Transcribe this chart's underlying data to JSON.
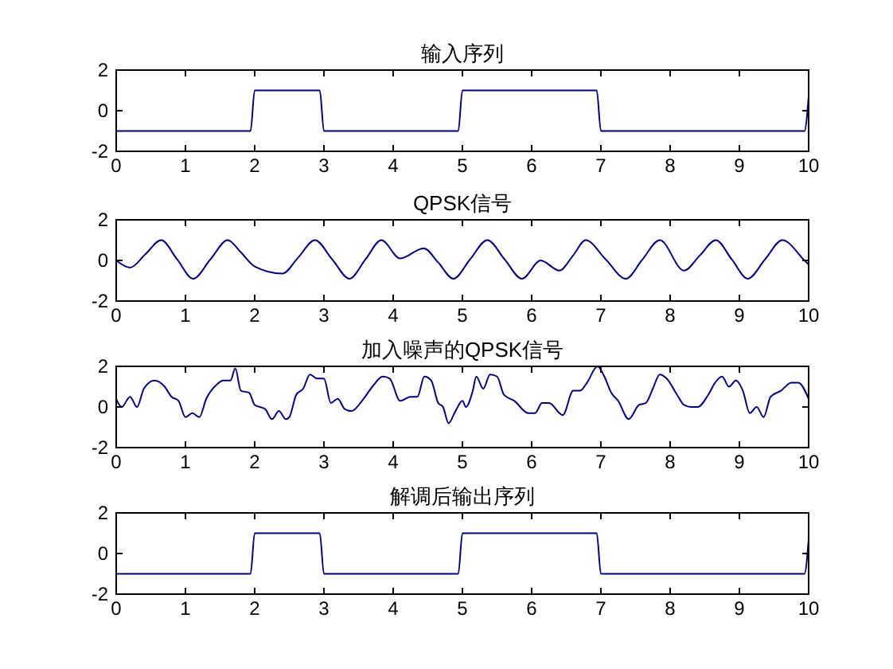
{
  "chart_data": [
    {
      "type": "line",
      "title": "输入序列",
      "xlim": [
        0,
        10
      ],
      "ylim": [
        -2,
        2
      ],
      "xticks": [
        0,
        1,
        2,
        3,
        4,
        5,
        6,
        7,
        8,
        9,
        10
      ],
      "yticks": [
        -2,
        0,
        2
      ],
      "series": [
        {
          "color": "#000080",
          "x": [
            0,
            1.94,
            2,
            2.94,
            3,
            4.94,
            5,
            6.94,
            7,
            9.94,
            10
          ],
          "values": [
            -1,
            -1,
            1,
            1,
            -1,
            -1,
            1,
            1,
            -1,
            -1,
            0.7
          ]
        }
      ]
    },
    {
      "type": "line",
      "title": "QPSK信号",
      "xlim": [
        0,
        10
      ],
      "ylim": [
        -2,
        2
      ],
      "xticks": [
        0,
        1,
        2,
        3,
        4,
        5,
        6,
        7,
        8,
        9,
        10
      ],
      "yticks": [
        -2,
        0,
        2
      ],
      "series": [
        {
          "color": "#000080",
          "x": [
            0,
            0.2,
            0.42,
            0.65,
            0.88,
            1.11,
            1.36,
            1.61,
            1.8,
            2.0,
            2.4,
            2.63,
            2.87,
            3.12,
            3.37,
            3.6,
            3.83,
            4.1,
            4.44,
            4.65,
            4.87,
            5.11,
            5.36,
            5.61,
            5.86,
            6.13,
            6.4,
            6.6,
            6.78,
            7.07,
            7.36,
            7.6,
            7.85,
            8.2,
            8.43,
            8.66,
            8.89,
            9.12,
            9.37,
            9.62,
            9.94,
            10
          ],
          "values": [
            0,
            -0.35,
            0.3,
            1.0,
            0.05,
            -0.9,
            0.05,
            1.0,
            0.4,
            -0.3,
            -0.65,
            0.15,
            1.0,
            0.05,
            -0.9,
            0.05,
            1.0,
            0.1,
            0.6,
            -0.1,
            -0.9,
            0.05,
            1.0,
            0.05,
            -0.9,
            0,
            -0.5,
            0.25,
            1.0,
            0.05,
            -0.9,
            0.05,
            1.0,
            -0.5,
            0.25,
            1.0,
            0.05,
            -0.9,
            0.05,
            1.0,
            0,
            -0.2
          ]
        }
      ]
    },
    {
      "type": "line",
      "title": "加入噪声的QPSK信号",
      "xlim": [
        0,
        10
      ],
      "ylim": [
        -2,
        2
      ],
      "xticks": [
        0,
        1,
        2,
        3,
        4,
        5,
        6,
        7,
        8,
        9,
        10
      ],
      "yticks": [
        -2,
        0,
        2
      ],
      "series": [
        {
          "color": "#000080",
          "x": [
            0,
            0.08,
            0.2,
            0.3,
            0.4,
            0.55,
            0.7,
            0.8,
            0.9,
            1.0,
            1.1,
            1.2,
            1.3,
            1.45,
            1.55,
            1.65,
            1.72,
            1.8,
            1.92,
            2.0,
            2.15,
            2.25,
            2.35,
            2.45,
            2.5,
            2.6,
            2.7,
            2.8,
            2.9,
            3.0,
            3.1,
            3.2,
            3.3,
            3.4,
            3.55,
            3.7,
            3.85,
            3.95,
            4.1,
            4.25,
            4.35,
            4.45,
            4.55,
            4.65,
            4.72,
            4.8,
            4.9,
            5.0,
            5.05,
            5.15,
            5.2,
            5.3,
            5.4,
            5.5,
            5.6,
            5.75,
            5.95,
            6.05,
            6.15,
            6.25,
            6.45,
            6.6,
            6.7,
            6.8,
            6.95,
            7.05,
            7.15,
            7.25,
            7.4,
            7.55,
            7.65,
            7.75,
            7.85,
            7.95,
            8.1,
            8.2,
            8.3,
            8.4,
            8.55,
            8.65,
            8.75,
            8.85,
            8.95,
            9.05,
            9.15,
            9.25,
            9.35,
            9.45,
            9.6,
            9.75,
            9.85,
            10
          ],
          "values": [
            0.4,
            0,
            0.5,
            0,
            0.9,
            1.3,
            1.0,
            0.5,
            0.3,
            -0.5,
            -0.3,
            -0.5,
            0.4,
            1.1,
            1.3,
            1.3,
            1.9,
            0.8,
            0.7,
            0.1,
            -0.1,
            -0.6,
            -0.2,
            -0.6,
            -0.5,
            0.6,
            0.9,
            1.6,
            1.4,
            1.4,
            0.2,
            0.4,
            -0.1,
            -0.2,
            0.3,
            1.0,
            1.5,
            1.4,
            0.3,
            0.5,
            0.5,
            1.5,
            1.3,
            0.2,
            0,
            -0.8,
            -0.2,
            0.3,
            0,
            0.8,
            1.5,
            0.9,
            1.6,
            1.5,
            0.6,
            0.3,
            -0.3,
            -0.3,
            0.2,
            0.2,
            -0.4,
            0.8,
            0.8,
            1.2,
            2.0,
            1.5,
            0.7,
            0.3,
            -0.6,
            0.1,
            0.2,
            0.9,
            1.6,
            1.4,
            0.6,
            0.1,
            0,
            0,
            0.6,
            1.2,
            1.5,
            1.0,
            1.3,
            0.8,
            -0.3,
            0,
            -0.5,
            0.5,
            0.8,
            1.2,
            1.2,
            0.4
          ]
        }
      ]
    },
    {
      "type": "line",
      "title": "解调后输出序列",
      "xlim": [
        0,
        10
      ],
      "ylim": [
        -2,
        2
      ],
      "xticks": [
        0,
        1,
        2,
        3,
        4,
        5,
        6,
        7,
        8,
        9,
        10
      ],
      "yticks": [
        -2,
        0,
        2
      ],
      "series": [
        {
          "color": "#000080",
          "x": [
            0,
            1.94,
            2,
            2.94,
            3,
            4.94,
            5,
            6.94,
            7,
            9.94,
            10
          ],
          "values": [
            -1,
            -1,
            1,
            1,
            -1,
            -1,
            1,
            1,
            -1,
            -1,
            0.7
          ]
        }
      ]
    }
  ]
}
